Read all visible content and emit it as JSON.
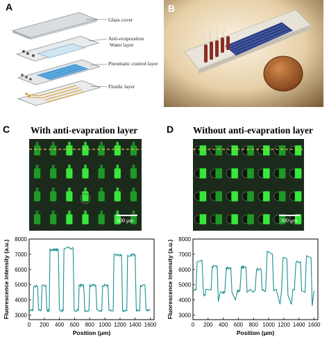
{
  "panels": {
    "A": {
      "letter": "A",
      "labels": {
        "glass": "Glass cover",
        "anti1": "Anti-evaporation",
        "anti2": "Water layer",
        "pneumatic": "Pneumatic control layer",
        "fluidic": "Fluidic layer"
      }
    },
    "B": {
      "letter": "B"
    },
    "C": {
      "letter": "C",
      "title": "With anti-evapration layer",
      "scalebar": "300 μm"
    },
    "D": {
      "letter": "D",
      "title": "Without anti-evapration layer",
      "scalebar": "300 μm"
    }
  },
  "colors": {
    "line": "#1a8f8f",
    "micro_bg": "#1c2a1c",
    "well_bright": "#37e83a",
    "well_dim": "#1f9a26",
    "dashed": "#e8c04a"
  },
  "chart_data": [
    {
      "type": "line",
      "panel": "C",
      "xlabel": "Position (μm)",
      "ylabel": "Fluorescence intensity (a.u.)",
      "xlim": [
        0,
        1650
      ],
      "ylim": [
        2700,
        8000
      ],
      "xticks": [
        0,
        200,
        400,
        600,
        800,
        1000,
        1200,
        1400,
        1600
      ],
      "yticks": [
        3000,
        4000,
        5000,
        6000,
        7000,
        8000
      ],
      "color": "#1a8f8f",
      "segments": [
        [
          0,
          3300
        ],
        [
          50,
          3300
        ],
        [
          60,
          4900
        ],
        [
          110,
          4900
        ],
        [
          125,
          3300
        ],
        [
          160,
          3300
        ],
        [
          170,
          4950
        ],
        [
          220,
          4950
        ],
        [
          235,
          3300
        ],
        [
          265,
          3300
        ],
        [
          275,
          7300
        ],
        [
          385,
          7300
        ],
        [
          400,
          3300
        ],
        [
          450,
          3300
        ],
        [
          460,
          7400
        ],
        [
          580,
          7400
        ],
        [
          595,
          3300
        ],
        [
          650,
          3300
        ],
        [
          660,
          4950
        ],
        [
          720,
          4950
        ],
        [
          735,
          3300
        ],
        [
          790,
          3300
        ],
        [
          800,
          4950
        ],
        [
          880,
          4950
        ],
        [
          895,
          3300
        ],
        [
          960,
          3300
        ],
        [
          970,
          4950
        ],
        [
          1040,
          4950
        ],
        [
          1055,
          3300
        ],
        [
          1110,
          3300
        ],
        [
          1120,
          6950
        ],
        [
          1220,
          6950
        ],
        [
          1235,
          3300
        ],
        [
          1290,
          3300
        ],
        [
          1300,
          6950
        ],
        [
          1400,
          6950
        ],
        [
          1415,
          3300
        ],
        [
          1460,
          3300
        ],
        [
          1470,
          4950
        ],
        [
          1530,
          4950
        ],
        [
          1545,
          3300
        ],
        [
          1600,
          3300
        ]
      ]
    },
    {
      "type": "line",
      "panel": "D",
      "xlabel": "Position (μm)",
      "ylabel": "Fluorescence intensity (a.u.)",
      "xlim": [
        0,
        1650
      ],
      "ylim": [
        2700,
        8000
      ],
      "xticks": [
        0,
        200,
        400,
        600,
        800,
        1000,
        1200,
        1400,
        1600
      ],
      "yticks": [
        3000,
        4000,
        5000,
        6000,
        7000,
        8000
      ],
      "color": "#1a8f8f",
      "segments": [
        [
          0,
          4650
        ],
        [
          40,
          4650
        ],
        [
          55,
          6500
        ],
        [
          120,
          6600
        ],
        [
          140,
          4300
        ],
        [
          160,
          4300
        ],
        [
          170,
          4700
        ],
        [
          240,
          4650
        ],
        [
          255,
          6200
        ],
        [
          320,
          6200
        ],
        [
          335,
          3900
        ],
        [
          360,
          4500
        ],
        [
          420,
          4500
        ],
        [
          440,
          6100
        ],
        [
          500,
          6100
        ],
        [
          515,
          4500
        ],
        [
          560,
          4000
        ],
        [
          590,
          4600
        ],
        [
          620,
          4600
        ],
        [
          640,
          6150
        ],
        [
          700,
          6150
        ],
        [
          715,
          4500
        ],
        [
          760,
          4700
        ],
        [
          790,
          4500
        ],
        [
          820,
          4600
        ],
        [
          840,
          6000
        ],
        [
          900,
          6000
        ],
        [
          915,
          4600
        ],
        [
          960,
          4600
        ],
        [
          980,
          7200
        ],
        [
          1050,
          7000
        ],
        [
          1065,
          4600
        ],
        [
          1100,
          4700
        ],
        [
          1150,
          3700
        ],
        [
          1170,
          4600
        ],
        [
          1190,
          6800
        ],
        [
          1240,
          6700
        ],
        [
          1255,
          4300
        ],
        [
          1300,
          3700
        ],
        [
          1320,
          4700
        ],
        [
          1340,
          4650
        ],
        [
          1360,
          6500
        ],
        [
          1420,
          6500
        ],
        [
          1435,
          4600
        ],
        [
          1480,
          4500
        ],
        [
          1500,
          6900
        ],
        [
          1560,
          6750
        ],
        [
          1575,
          3600
        ],
        [
          1600,
          4600
        ]
      ]
    }
  ]
}
